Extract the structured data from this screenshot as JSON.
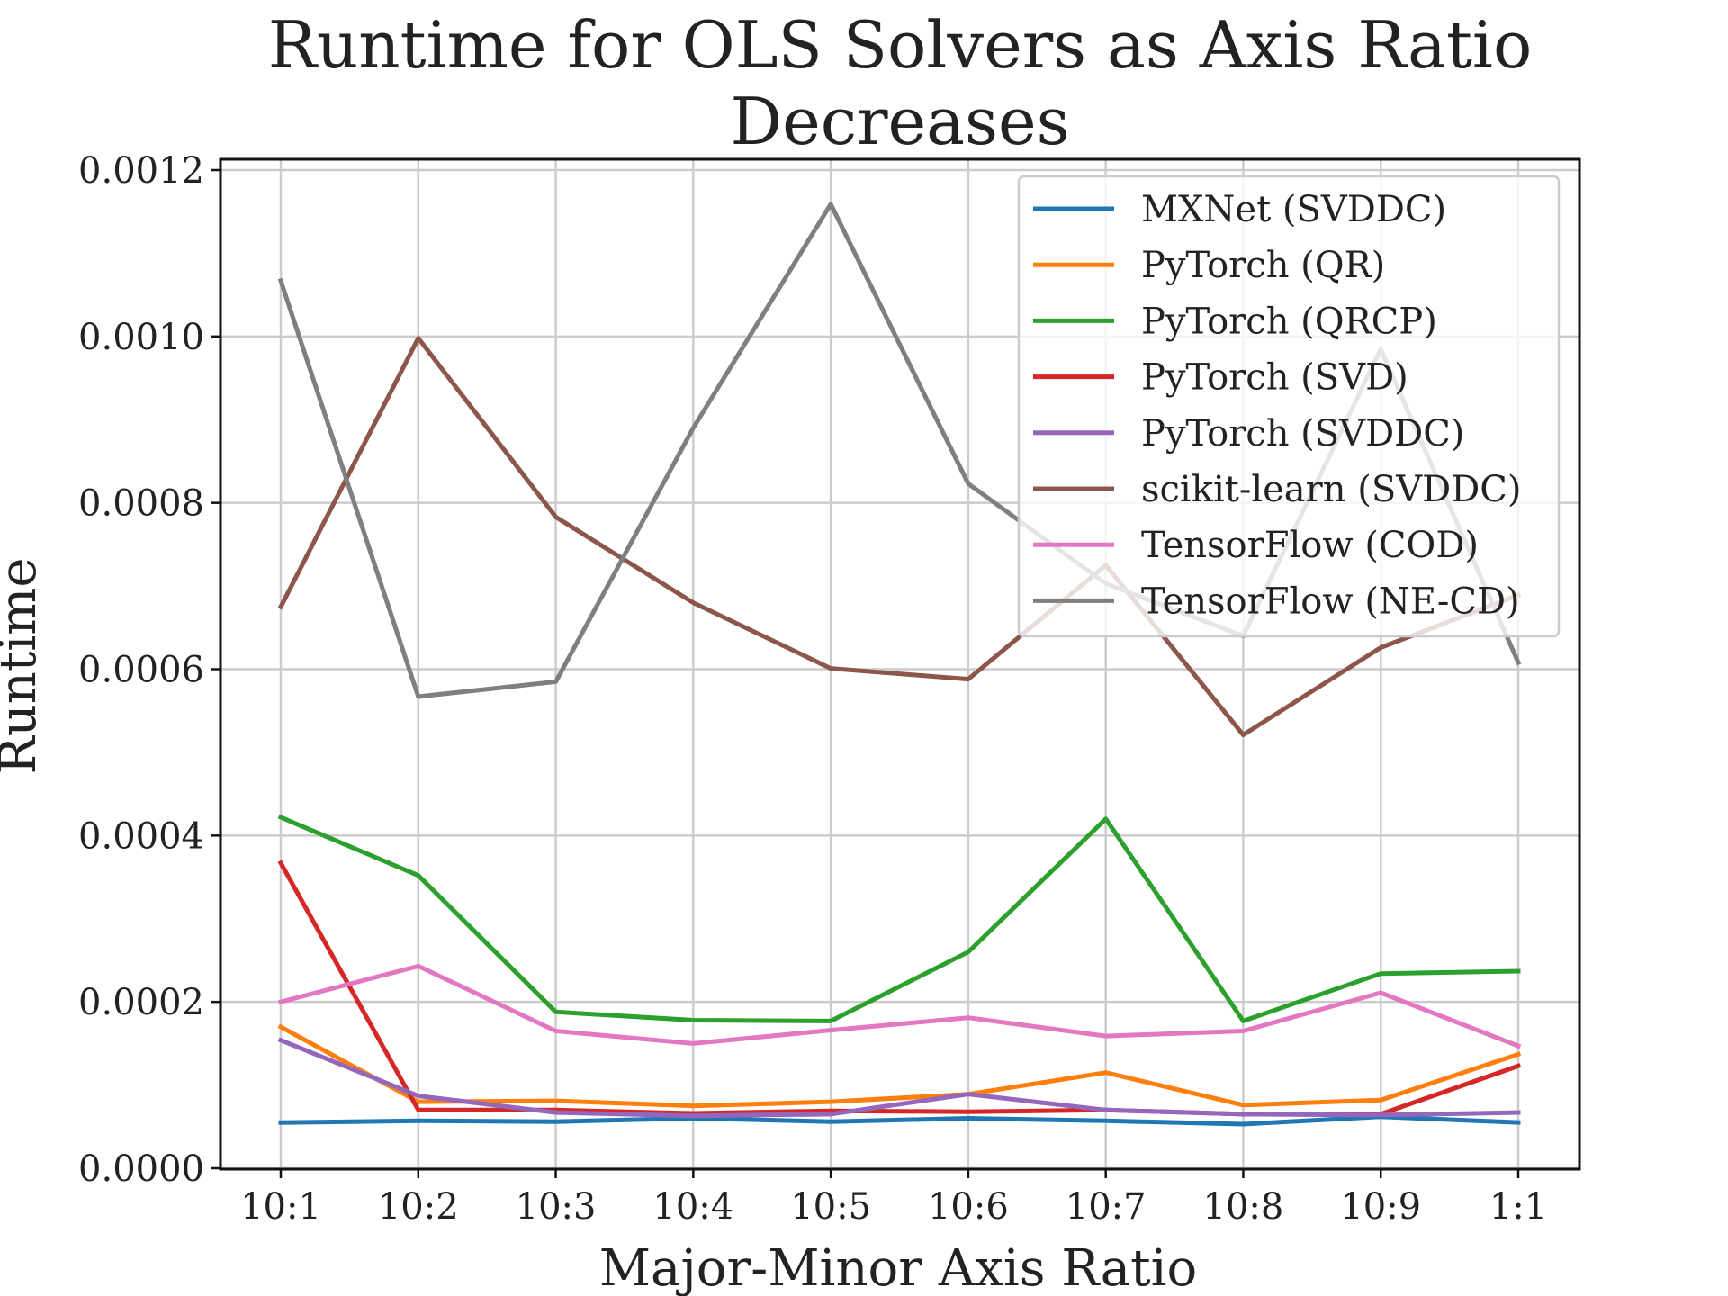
{
  "chart_data": {
    "type": "line",
    "title_line1": "Runtime for OLS Solvers as Axis Ratio",
    "title_line2": "Decreases",
    "xlabel": "Major-Minor Axis Ratio",
    "ylabel": "Runtime",
    "categories": [
      "10:1",
      "10:2",
      "10:3",
      "10:4",
      "10:5",
      "10:6",
      "10:7",
      "10:8",
      "10:9",
      "1:1"
    ],
    "ylim": [
      0,
      0.0012
    ],
    "yticks": [
      "0.0000",
      "0.0002",
      "0.0004",
      "0.0006",
      "0.0008",
      "0.0010",
      "0.0012"
    ],
    "grid": true,
    "legend_position": "top-right",
    "series": [
      {
        "name": "MXNet (SVDDC)",
        "color": "#1f77b4",
        "values": [
          5.5e-05,
          5.7e-05,
          5.6e-05,
          6e-05,
          5.6e-05,
          6e-05,
          5.7e-05,
          5.3e-05,
          6.2e-05,
          5.5e-05
        ]
      },
      {
        "name": "PyTorch (QR)",
        "color": "#ff7f0e",
        "values": [
          0.00017,
          8e-05,
          8.1e-05,
          7.5e-05,
          8e-05,
          8.9e-05,
          0.000115,
          7.6e-05,
          8.2e-05,
          0.000137
        ]
      },
      {
        "name": "PyTorch (QRCP)",
        "color": "#2ca02c",
        "values": [
          0.000422,
          0.000352,
          0.000188,
          0.000178,
          0.000177,
          0.00026,
          0.00042,
          0.000177,
          0.000234,
          0.000237
        ]
      },
      {
        "name": "PyTorch (SVD)",
        "color": "#d62728",
        "values": [
          0.000367,
          7e-05,
          7e-05,
          6.6e-05,
          6.9e-05,
          6.8e-05,
          7e-05,
          6.5e-05,
          6.5e-05,
          0.000123
        ]
      },
      {
        "name": "PyTorch (SVDDC)",
        "color": "#9467bd",
        "values": [
          0.000154,
          8.7e-05,
          6.7e-05,
          6.3e-05,
          6.5e-05,
          8.9e-05,
          7e-05,
          6.5e-05,
          6.4e-05,
          6.7e-05
        ]
      },
      {
        "name": "scikit-learn (SVDDC)",
        "color": "#8c564b",
        "values": [
          0.000675,
          0.000998,
          0.000783,
          0.00068,
          0.000601,
          0.000588,
          0.000725,
          0.000521,
          0.000626,
          0.000689
        ]
      },
      {
        "name": "TensorFlow (COD)",
        "color": "#e377c2",
        "values": [
          0.0002,
          0.000243,
          0.000165,
          0.00015,
          0.000166,
          0.000181,
          0.000159,
          0.000165,
          0.000211,
          0.000147
        ]
      },
      {
        "name": "TensorFlow (NE-CD)",
        "color": "#7f7f7f",
        "values": [
          0.001067,
          0.000567,
          0.000585,
          0.00089,
          0.001159,
          0.000823,
          0.000703,
          0.00064,
          0.000985,
          0.000608
        ]
      }
    ]
  }
}
